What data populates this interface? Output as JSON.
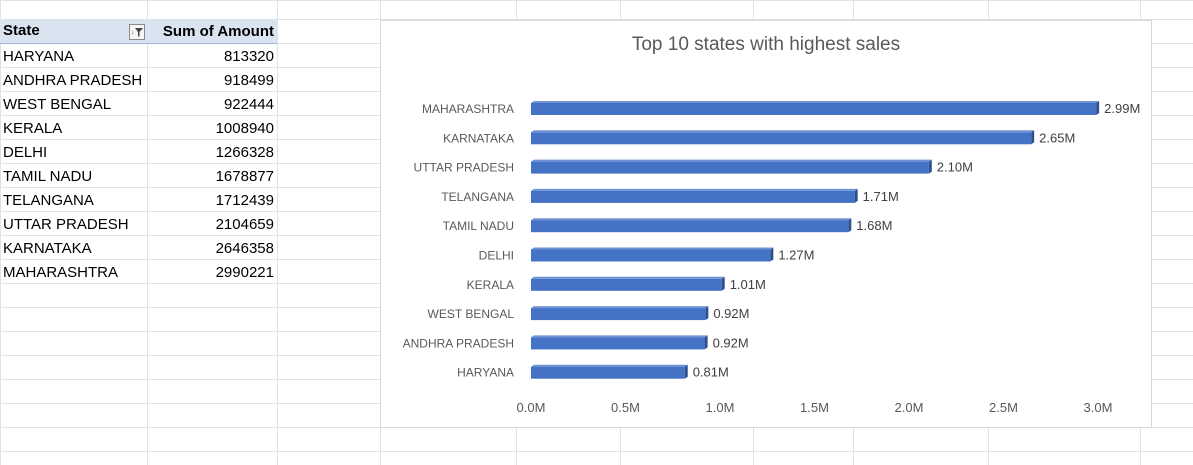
{
  "pivot": {
    "headers": {
      "state": "State",
      "amount": "Sum of Amount"
    },
    "filter_icon": "filter-sort-icon",
    "rows": [
      {
        "state": "HARYANA",
        "amount": "813320"
      },
      {
        "state": "ANDHRA PRADESH",
        "amount": "918499"
      },
      {
        "state": "WEST BENGAL",
        "amount": "922444"
      },
      {
        "state": "KERALA",
        "amount": "1008940"
      },
      {
        "state": "DELHI",
        "amount": "1266328"
      },
      {
        "state": "TAMIL NADU",
        "amount": "1678877"
      },
      {
        "state": "TELANGANA",
        "amount": "1712439"
      },
      {
        "state": "UTTAR PRADESH",
        "amount": "2104659"
      },
      {
        "state": "KARNATAKA",
        "amount": "2646358"
      },
      {
        "state": "MAHARASHTRA",
        "amount": "2990221"
      }
    ]
  },
  "chart_data": {
    "type": "bar",
    "orientation": "horizontal",
    "title": "Top 10 states with highest sales",
    "categories": [
      "MAHARASHTRA",
      "KARNATAKA",
      "UTTAR PRADESH",
      "TELANGANA",
      "TAMIL NADU",
      "DELHI",
      "KERALA",
      "WEST BENGAL",
      "ANDHRA PRADESH",
      "HARYANA"
    ],
    "values": [
      2990221,
      2646358,
      2104659,
      1712439,
      1678877,
      1266328,
      1008940,
      922444,
      918499,
      813320
    ],
    "data_labels": [
      "2.99M",
      "2.65M",
      "2.10M",
      "1.71M",
      "1.68M",
      "1.27M",
      "1.01M",
      "0.92M",
      "0.92M",
      "0.81M"
    ],
    "x_ticks": [
      "0.0M",
      "0.5M",
      "1.0M",
      "1.5M",
      "2.0M",
      "2.5M",
      "3.0M"
    ],
    "xlim": [
      0,
      3000000
    ],
    "xlabel": "",
    "ylabel": "",
    "grid": false,
    "legend": "none",
    "bar_color": "#4472c4"
  }
}
